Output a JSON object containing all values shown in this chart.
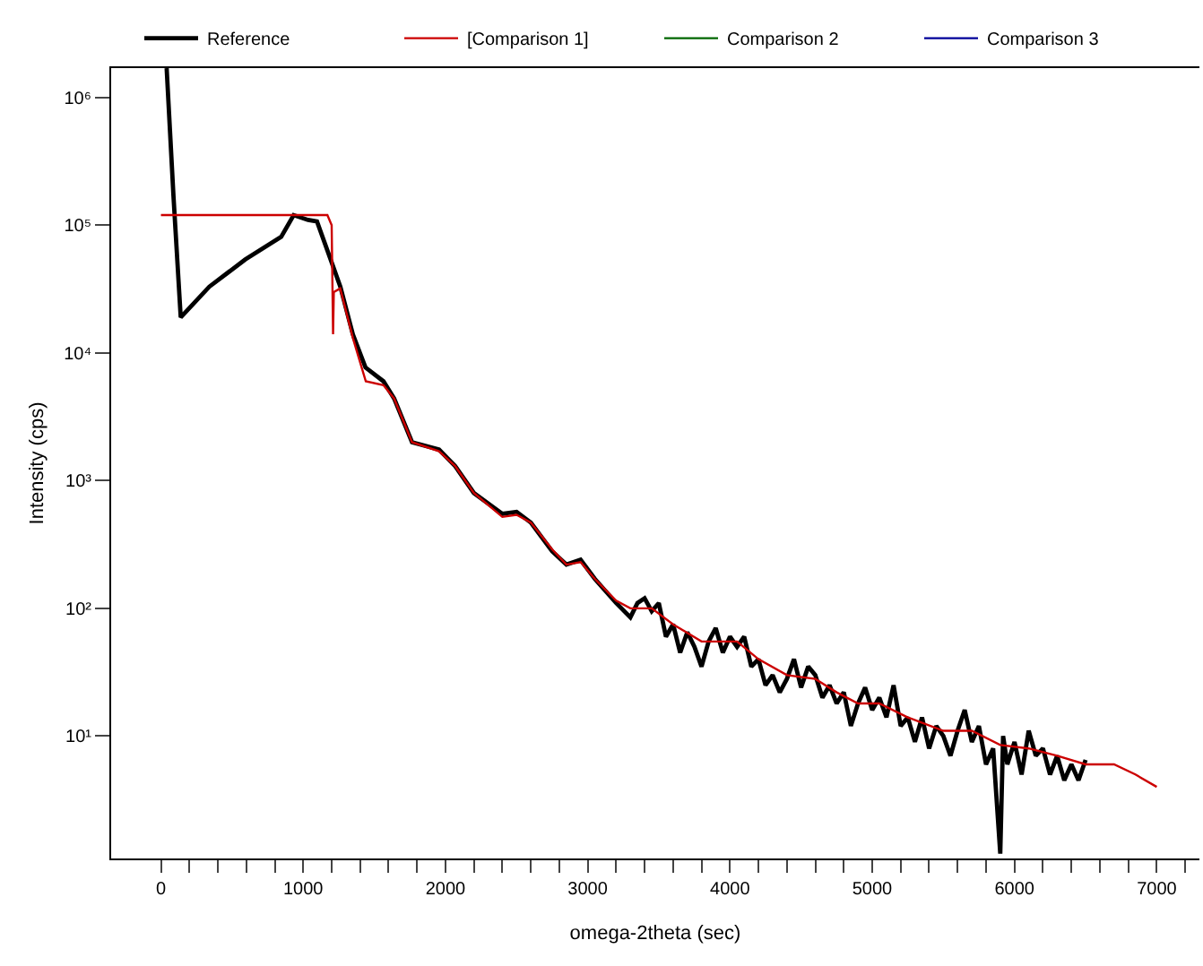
{
  "chart_data": {
    "type": "line",
    "xlabel": "omega-2theta (sec)",
    "ylabel": "Intensity (cps)",
    "log": "y",
    "legend": "top",
    "marker": "none",
    "line_style": "solid",
    "xlim": [
      -350,
      7300
    ],
    "xticks": [
      0,
      {
        "value": 200,
        "label": null
      },
      {
        "value": 400,
        "label": null
      },
      {
        "value": 600,
        "label": null
      },
      {
        "value": 800,
        "label": null
      },
      1000,
      {
        "value": 1200,
        "label": null
      },
      {
        "value": 1400,
        "label": null
      },
      {
        "value": 1600,
        "label": null
      },
      {
        "value": 1800,
        "label": null
      },
      2000,
      {
        "value": 2200,
        "label": null
      },
      {
        "value": 2400,
        "label": null
      },
      {
        "value": 2600,
        "label": null
      },
      {
        "value": 2800,
        "label": null
      },
      3000,
      {
        "value": 3200,
        "label": null
      },
      {
        "value": 3400,
        "label": null
      },
      {
        "value": 3600,
        "label": null
      },
      {
        "value": 3800,
        "label": null
      },
      4000,
      {
        "value": 4200,
        "label": null
      },
      {
        "value": 4400,
        "label": null
      },
      {
        "value": 4600,
        "label": null
      },
      {
        "value": 4800,
        "label": null
      },
      5000,
      {
        "value": 5200,
        "label": null
      },
      {
        "value": 5400,
        "label": null
      },
      {
        "value": 5600,
        "label": null
      },
      {
        "value": 5800,
        "label": null
      },
      6000,
      {
        "value": 6200,
        "label": null
      },
      {
        "value": 6400,
        "label": null
      },
      {
        "value": 6600,
        "label": null
      },
      {
        "value": 6800,
        "label": null
      },
      7000,
      {
        "value": 7200,
        "label": null
      }
    ],
    "ylim": [
      1.1,
      1700000
    ],
    "yticks": [
      {
        "value": 10,
        "label": "10¹"
      },
      {
        "value": 100,
        "label": "10²"
      },
      {
        "value": 1000,
        "label": "10³"
      },
      {
        "value": 10000,
        "label": "10⁴"
      },
      {
        "value": 100000,
        "label": "10⁵"
      },
      {
        "value": 1000000,
        "label": "10⁶"
      }
    ],
    "series": [
      {
        "name": "Reference",
        "color": "#000000",
        "x": [
          40,
          88,
          139,
          340,
          593,
          845,
          933,
          1034,
          1097,
          1185,
          1261,
          1349,
          1438,
          1564,
          1639,
          1765,
          1955,
          2068,
          2200,
          2400,
          2500,
          2600,
          2750,
          2850,
          2950,
          3050,
          3200,
          3300,
          3350,
          3400,
          3450,
          3500,
          3550,
          3600,
          3650,
          3700,
          3750,
          3800,
          3850,
          3900,
          3950,
          4000,
          4050,
          4100,
          4150,
          4200,
          4250,
          4300,
          4350,
          4400,
          4450,
          4500,
          4550,
          4600,
          4650,
          4700,
          4750,
          4800,
          4850,
          4900,
          4950,
          5000,
          5050,
          5100,
          5150,
          5200,
          5250,
          5300,
          5350,
          5400,
          5450,
          5500,
          5550,
          5600,
          5650,
          5700,
          5750,
          5800,
          5850,
          5900,
          5920,
          5950,
          6000,
          6050,
          6100,
          6150,
          6200,
          6250,
          6300,
          6350,
          6400,
          6450,
          6500
        ],
        "values": [
          1700000,
          170000,
          19000,
          33000,
          54000,
          81000,
          120000,
          110000,
          107000,
          57000,
          33000,
          14000,
          7700,
          6000,
          4400,
          2000,
          1750,
          1300,
          800,
          550,
          570,
          470,
          280,
          220,
          240,
          170,
          110,
          85,
          110,
          120,
          95,
          110,
          60,
          75,
          45,
          65,
          50,
          35,
          55,
          70,
          45,
          60,
          50,
          60,
          35,
          40,
          25,
          30,
          22,
          28,
          40,
          24,
          35,
          30,
          20,
          25,
          18,
          22,
          12,
          18,
          24,
          16,
          20,
          14,
          25,
          12,
          14,
          9,
          14,
          8,
          12,
          10,
          7,
          11,
          16,
          9,
          12,
          6,
          8,
          1.2,
          10,
          6,
          9,
          5,
          11,
          7,
          8,
          5,
          7,
          4.5,
          6,
          4.5,
          6.5
        ]
      },
      {
        "name": "[Comparison 1]",
        "color": "#cc0000",
        "x": [
          0,
          1170,
          1200,
          1210,
          1215,
          1260,
          1350,
          1440,
          1564,
          1639,
          1765,
          1955,
          2068,
          2200,
          2400,
          2500,
          2600,
          2750,
          2850,
          2950,
          3050,
          3200,
          3300,
          3450,
          3600,
          3800,
          3900,
          4050,
          4200,
          4400,
          4600,
          4750,
          4900,
          5050,
          5250,
          5500,
          5700,
          5900,
          6100,
          6300,
          6500,
          6600,
          6700,
          6850,
          7000
        ],
        "values": [
          120000,
          120000,
          100000,
          14000,
          30000,
          32000,
          13000,
          6000,
          5600,
          4400,
          2000,
          1700,
          1300,
          800,
          520,
          540,
          470,
          290,
          220,
          230,
          170,
          115,
          100,
          100,
          75,
          55,
          55,
          55,
          40,
          30,
          28,
          22,
          18,
          18,
          14,
          11,
          11,
          8.5,
          8,
          7,
          6,
          6,
          6,
          5,
          4
        ]
      },
      {
        "name": "Comparison 2",
        "color": "#006600"
      },
      {
        "name": "Comparison 3",
        "color": "#000099"
      }
    ]
  }
}
